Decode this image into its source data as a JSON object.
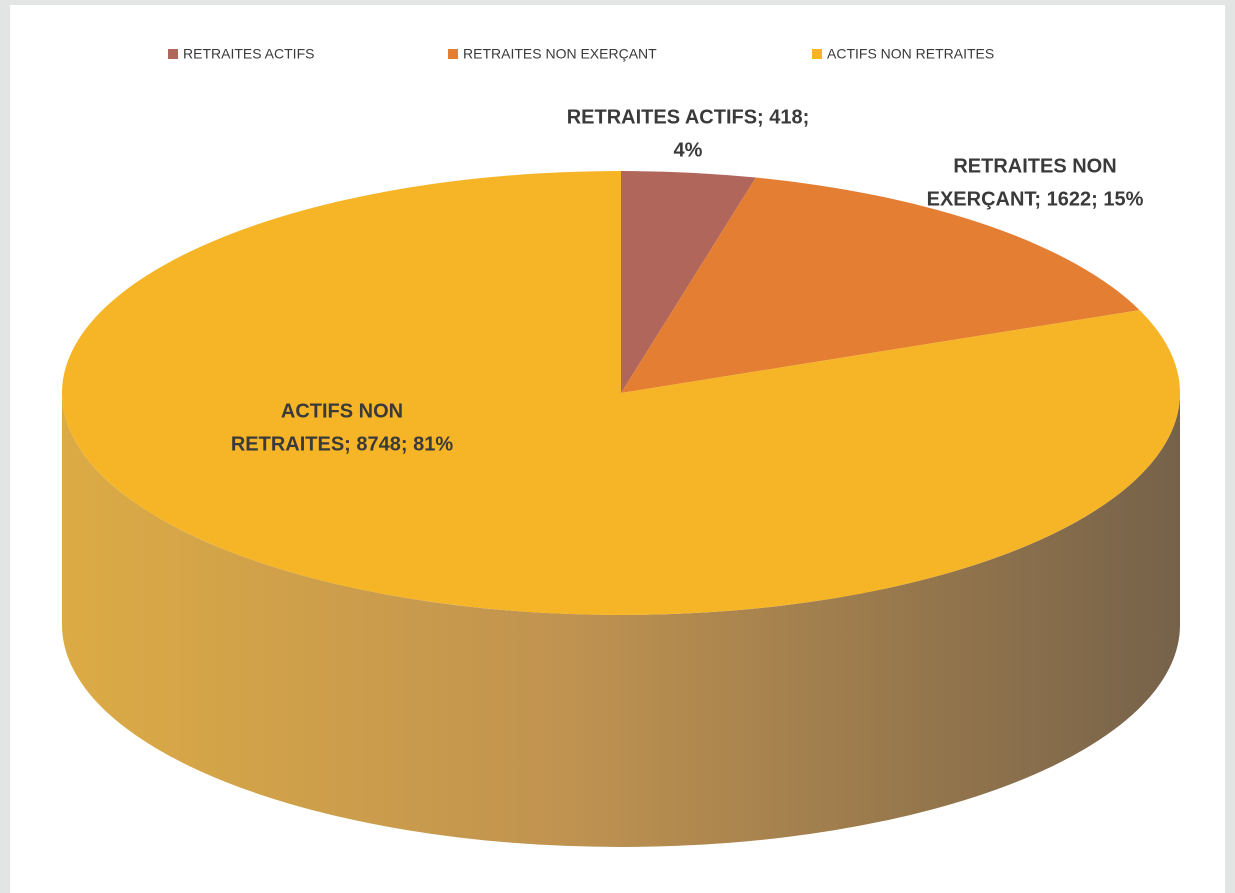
{
  "chart_data": {
    "type": "pie",
    "categories": [
      "RETRAITES ACTIFS",
      "RETRAITES NON EXERÇANT",
      "ACTIFS NON RETRAITES"
    ],
    "values": [
      418,
      1622,
      8748
    ],
    "percents": [
      4,
      15,
      81
    ],
    "value_labels": [
      [
        "RETRAITES ACTIFS; 418;",
        "4%"
      ],
      [
        "RETRAITES NON",
        "EXERÇANT; 1622; 15%"
      ],
      [
        "ACTIFS NON",
        "RETRAITES; 8748; 81%"
      ]
    ],
    "colors": [
      "#b0665a",
      "#e47e33",
      "#f6b526"
    ],
    "legend": "top"
  }
}
